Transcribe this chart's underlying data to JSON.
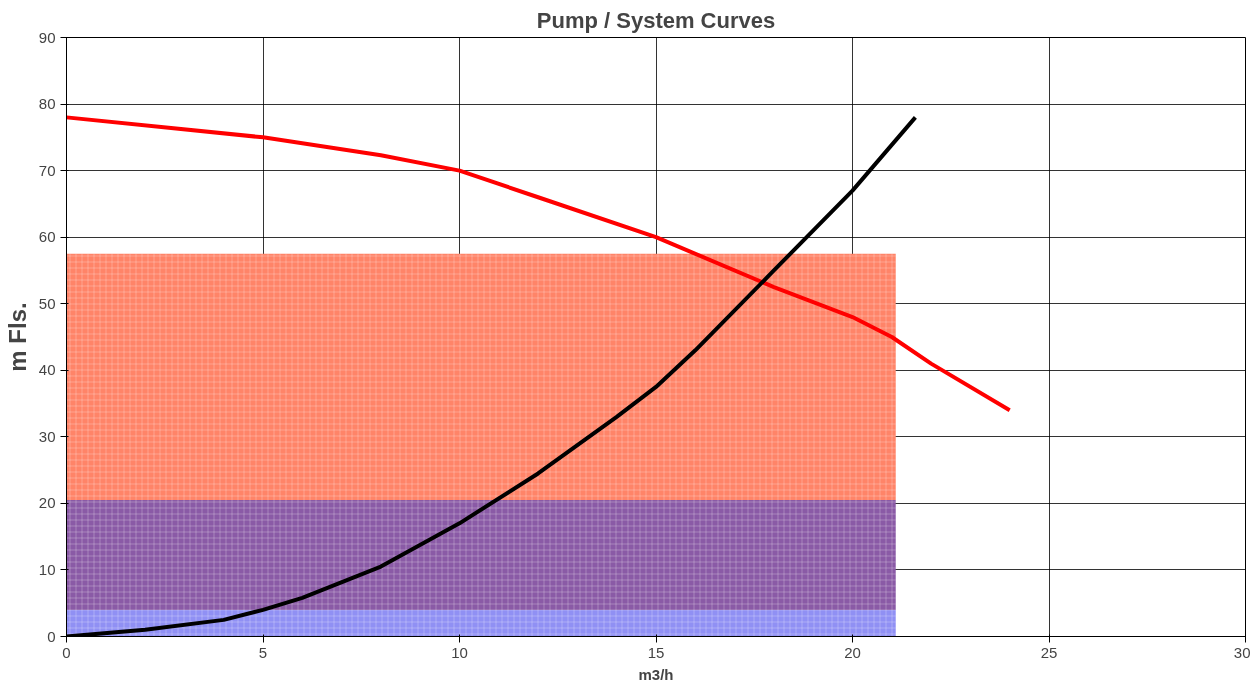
{
  "chart_data": {
    "type": "line",
    "title": "Pump / System Curves",
    "xlabel": "m3/h",
    "ylabel": "m Fls.",
    "xlim": [
      0,
      30
    ],
    "xticks": [
      0,
      5,
      10,
      15,
      20,
      25,
      30
    ],
    "ylim": [
      0,
      90
    ],
    "yticks": [
      0,
      10,
      20,
      30,
      40,
      50,
      60,
      70,
      80,
      90
    ],
    "grid": true,
    "stacked": true,
    "marker": "none",
    "line_style": "solid",
    "series": [
      {
        "type": "area",
        "color": "#9090f4",
        "x": [
          0,
          21.1
        ],
        "values": [
          4,
          4
        ]
      },
      {
        "type": "area",
        "color": "#8a5aa6",
        "x": [
          0,
          21.1
        ],
        "values": [
          16.5,
          16.5
        ]
      },
      {
        "type": "area",
        "color": "#ff8468",
        "x": [
          0,
          21.1
        ],
        "values": [
          37,
          37
        ]
      },
      {
        "type": "line",
        "color": "#ff0000",
        "x": [
          0,
          5,
          8,
          10,
          12,
          15,
          18,
          20,
          21,
          22,
          24
        ],
        "values": [
          78,
          75,
          72.3,
          70,
          66,
          60,
          52.5,
          48,
          45,
          41,
          34
        ]
      },
      {
        "type": "line",
        "color": "#000000",
        "x": [
          0,
          2,
          4,
          5,
          6,
          8,
          10,
          12,
          14,
          15,
          16,
          18,
          20,
          21.6
        ],
        "values": [
          0,
          1,
          2.5,
          4,
          5.8,
          10.5,
          17,
          24.5,
          33,
          37.5,
          43,
          55,
          67,
          78
        ]
      }
    ]
  }
}
